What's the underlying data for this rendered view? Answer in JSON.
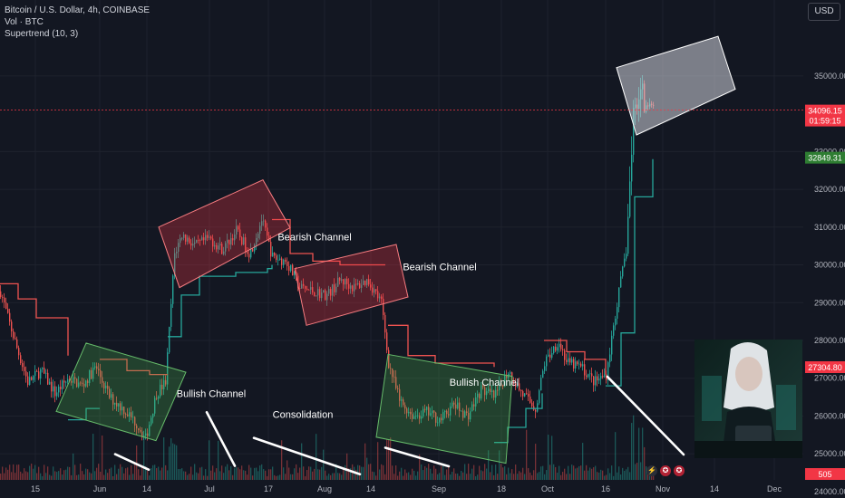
{
  "header": {
    "symbol_line": "Bitcoin / U.S. Dollar, 4h, COINBASE",
    "vol_line": "Vol · BTC",
    "indicator_line": "Supertrend (10, 3)"
  },
  "currency_button": "USD",
  "icons": [
    "lightning-icon",
    "us-flag-icon",
    "us-flag-icon"
  ],
  "colors": {
    "background": "#131722",
    "up": "#26a69a",
    "down": "#ef5350",
    "bullish_channel": "#4caf50",
    "bearish_channel": "#f23645",
    "price_line": "#f23645",
    "supertrend_up": "#2e7d32"
  },
  "chart_data": {
    "type": "candlestick",
    "x_tick_labels": [
      "15",
      "Jun",
      "14",
      "Jul",
      "17",
      "Aug",
      "14",
      "Sep",
      "18",
      "Oct",
      "16",
      "Nov",
      "14",
      "Dec"
    ],
    "y_tick_labels": [
      24000,
      25000,
      26000,
      27000,
      28000,
      29000,
      30000,
      31000,
      32000,
      33000,
      35000
    ],
    "ylim": [
      23950,
      36100
    ],
    "current_price": "34096.15",
    "countdown": "01:59:15",
    "supertrend_value": "32849.31",
    "level_label": "27304.80",
    "volume_label": "505",
    "price_path": [
      [
        0,
        29300
      ],
      [
        8,
        28600
      ],
      [
        18,
        27800
      ],
      [
        30,
        26900
      ],
      [
        45,
        27200
      ],
      [
        60,
        26600
      ],
      [
        75,
        27000
      ],
      [
        90,
        26800
      ],
      [
        105,
        27300
      ],
      [
        120,
        26500
      ],
      [
        135,
        26200
      ],
      [
        150,
        25800
      ],
      [
        160,
        25400
      ],
      [
        172,
        26600
      ],
      [
        182,
        26900
      ],
      [
        192,
        30300
      ],
      [
        200,
        30800
      ],
      [
        215,
        30500
      ],
      [
        230,
        30700
      ],
      [
        245,
        30400
      ],
      [
        260,
        30900
      ],
      [
        275,
        30300
      ],
      [
        288,
        31200
      ],
      [
        300,
        30200
      ],
      [
        315,
        30100
      ],
      [
        330,
        29400
      ],
      [
        345,
        29300
      ],
      [
        360,
        29200
      ],
      [
        375,
        29600
      ],
      [
        390,
        29400
      ],
      [
        405,
        29600
      ],
      [
        420,
        29000
      ],
      [
        428,
        27400
      ],
      [
        440,
        26400
      ],
      [
        455,
        26000
      ],
      [
        470,
        26100
      ],
      [
        485,
        25900
      ],
      [
        500,
        26300
      ],
      [
        515,
        26000
      ],
      [
        530,
        26700
      ],
      [
        545,
        26500
      ],
      [
        560,
        27200
      ],
      [
        575,
        26600
      ],
      [
        590,
        26200
      ],
      [
        600,
        27400
      ],
      [
        615,
        28000
      ],
      [
        625,
        27400
      ],
      [
        640,
        27300
      ],
      [
        655,
        26900
      ],
      [
        668,
        27100
      ],
      [
        680,
        29000
      ],
      [
        690,
        30400
      ],
      [
        698,
        33800
      ],
      [
        705,
        35000
      ],
      [
        712,
        34300
      ],
      [
        720,
        34100
      ]
    ],
    "supertrend": [
      {
        "trend": "down",
        "points": [
          [
            0,
            29500
          ],
          [
            20,
            29100
          ],
          [
            40,
            28600
          ],
          [
            60,
            28600
          ],
          [
            75,
            27600
          ]
        ]
      },
      {
        "trend": "up",
        "points": [
          [
            75,
            25900
          ],
          [
            95,
            26200
          ],
          [
            110,
            26200
          ]
        ]
      },
      {
        "trend": "down",
        "points": [
          [
            110,
            27500
          ],
          [
            140,
            27200
          ],
          [
            165,
            27100
          ],
          [
            185,
            27100
          ]
        ]
      },
      {
        "trend": "up",
        "points": [
          [
            185,
            28100
          ],
          [
            200,
            29200
          ],
          [
            220,
            29700
          ],
          [
            260,
            29800
          ],
          [
            295,
            29900
          ],
          [
            300,
            30000
          ]
        ]
      },
      {
        "trend": "down",
        "points": [
          [
            300,
            31200
          ],
          [
            320,
            30300
          ],
          [
            345,
            30100
          ],
          [
            375,
            30000
          ],
          [
            400,
            30000
          ],
          [
            425,
            30000
          ]
        ]
      },
      {
        "trend": "down",
        "points": [
          [
            428,
            28400
          ],
          [
            450,
            27600
          ],
          [
            480,
            27400
          ],
          [
            520,
            27400
          ],
          [
            545,
            27300
          ]
        ]
      },
      {
        "trend": "up",
        "points": [
          [
            545,
            25300
          ],
          [
            560,
            25700
          ],
          [
            580,
            26200
          ],
          [
            598,
            26600
          ]
        ]
      },
      {
        "trend": "down",
        "points": [
          [
            600,
            28000
          ],
          [
            625,
            27700
          ],
          [
            645,
            27500
          ],
          [
            668,
            27100
          ]
        ]
      },
      {
        "trend": "up",
        "points": [
          [
            668,
            26800
          ],
          [
            685,
            28200
          ],
          [
            700,
            31800
          ],
          [
            720,
            32800
          ]
        ]
      }
    ],
    "annotations": [
      {
        "text": "Bearish Channel",
        "at": [
          347,
          30650
        ]
      },
      {
        "text": "Bearish Channel",
        "at": [
          485,
          29860
        ]
      },
      {
        "text": "Bullish Channel",
        "at": [
          233,
          26500
        ]
      },
      {
        "text": "Bullish Channel",
        "at": [
          534,
          26800
        ]
      },
      {
        "text": "Consolidation",
        "at": [
          334,
          25950
        ]
      }
    ],
    "channels": [
      {
        "kind": "bullish",
        "corners": [
          [
            62,
            26120
          ],
          [
            95,
            27930
          ],
          [
            205,
            27160
          ],
          [
            172,
            25350
          ]
        ]
      },
      {
        "kind": "bullish",
        "corners": [
          [
            415,
            25440
          ],
          [
            428,
            27630
          ],
          [
            565,
            27050
          ],
          [
            558,
            24750
          ]
        ]
      },
      {
        "kind": "bearish",
        "corners": [
          [
            175,
            31000
          ],
          [
            290,
            32250
          ],
          [
            320,
            30980
          ],
          [
            198,
            29400
          ]
        ]
      },
      {
        "kind": "bearish",
        "corners": [
          [
            325,
            29900
          ],
          [
            437,
            30540
          ],
          [
            450,
            29150
          ],
          [
            338,
            28400
          ]
        ]
      },
      {
        "kind": "highlight",
        "corners": [
          [
            680,
            35220
          ],
          [
            792,
            36050
          ],
          [
            811,
            34650
          ],
          [
            702,
            33440
          ]
        ]
      }
    ],
    "trendlines": [
      [
        [
          127,
          24990
        ],
        [
          164,
          24580
        ]
      ],
      [
        [
          228,
          26100
        ],
        [
          259,
          24680
        ]
      ],
      [
        [
          280,
          25420
        ],
        [
          397,
          24460
        ]
      ],
      [
        [
          425,
          25160
        ],
        [
          495,
          24670
        ]
      ],
      [
        [
          670,
          27040
        ],
        [
          754,
          24980
        ]
      ]
    ]
  }
}
